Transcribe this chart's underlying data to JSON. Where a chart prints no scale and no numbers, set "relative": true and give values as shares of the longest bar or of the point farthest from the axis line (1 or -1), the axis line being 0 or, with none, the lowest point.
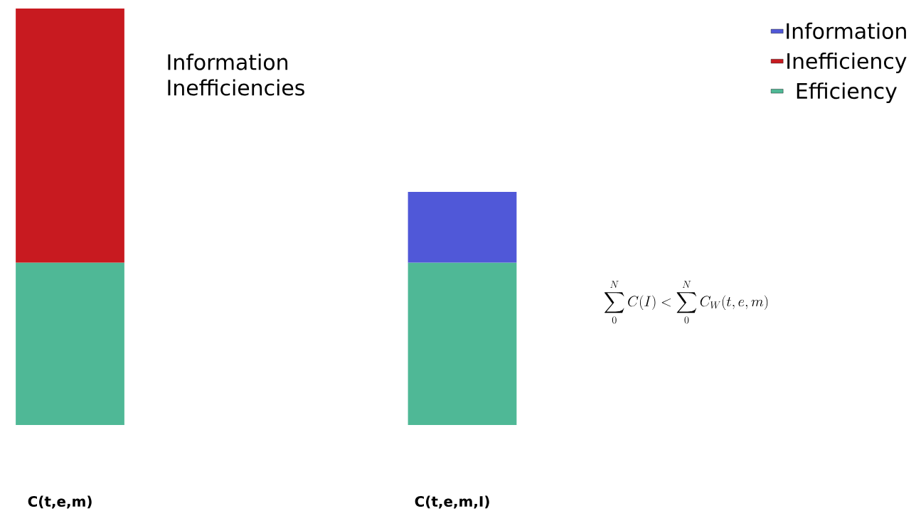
{
  "chart_data": {
    "type": "bar",
    "stacked": true,
    "relative": true,
    "categories": [
      "C(t,e,m)",
      "C(t,e,m,I)"
    ],
    "series": [
      {
        "name": "Efficiency",
        "color": "#4fb896",
        "values": [
          0.39,
          0.39
        ]
      },
      {
        "name": "Inefficiency",
        "color": "#c81a20",
        "values": [
          0.61,
          null
        ]
      },
      {
        "name": "Information",
        "color": "#5058d8",
        "values": [
          null,
          0.17
        ]
      }
    ],
    "legend": "top right",
    "annotations": [
      "Information Inefficiencies",
      "\\sum_{0}^{N} C(I) < \\sum_{0}^{N} C_{W}(t,e,m)"
    ]
  }
}
